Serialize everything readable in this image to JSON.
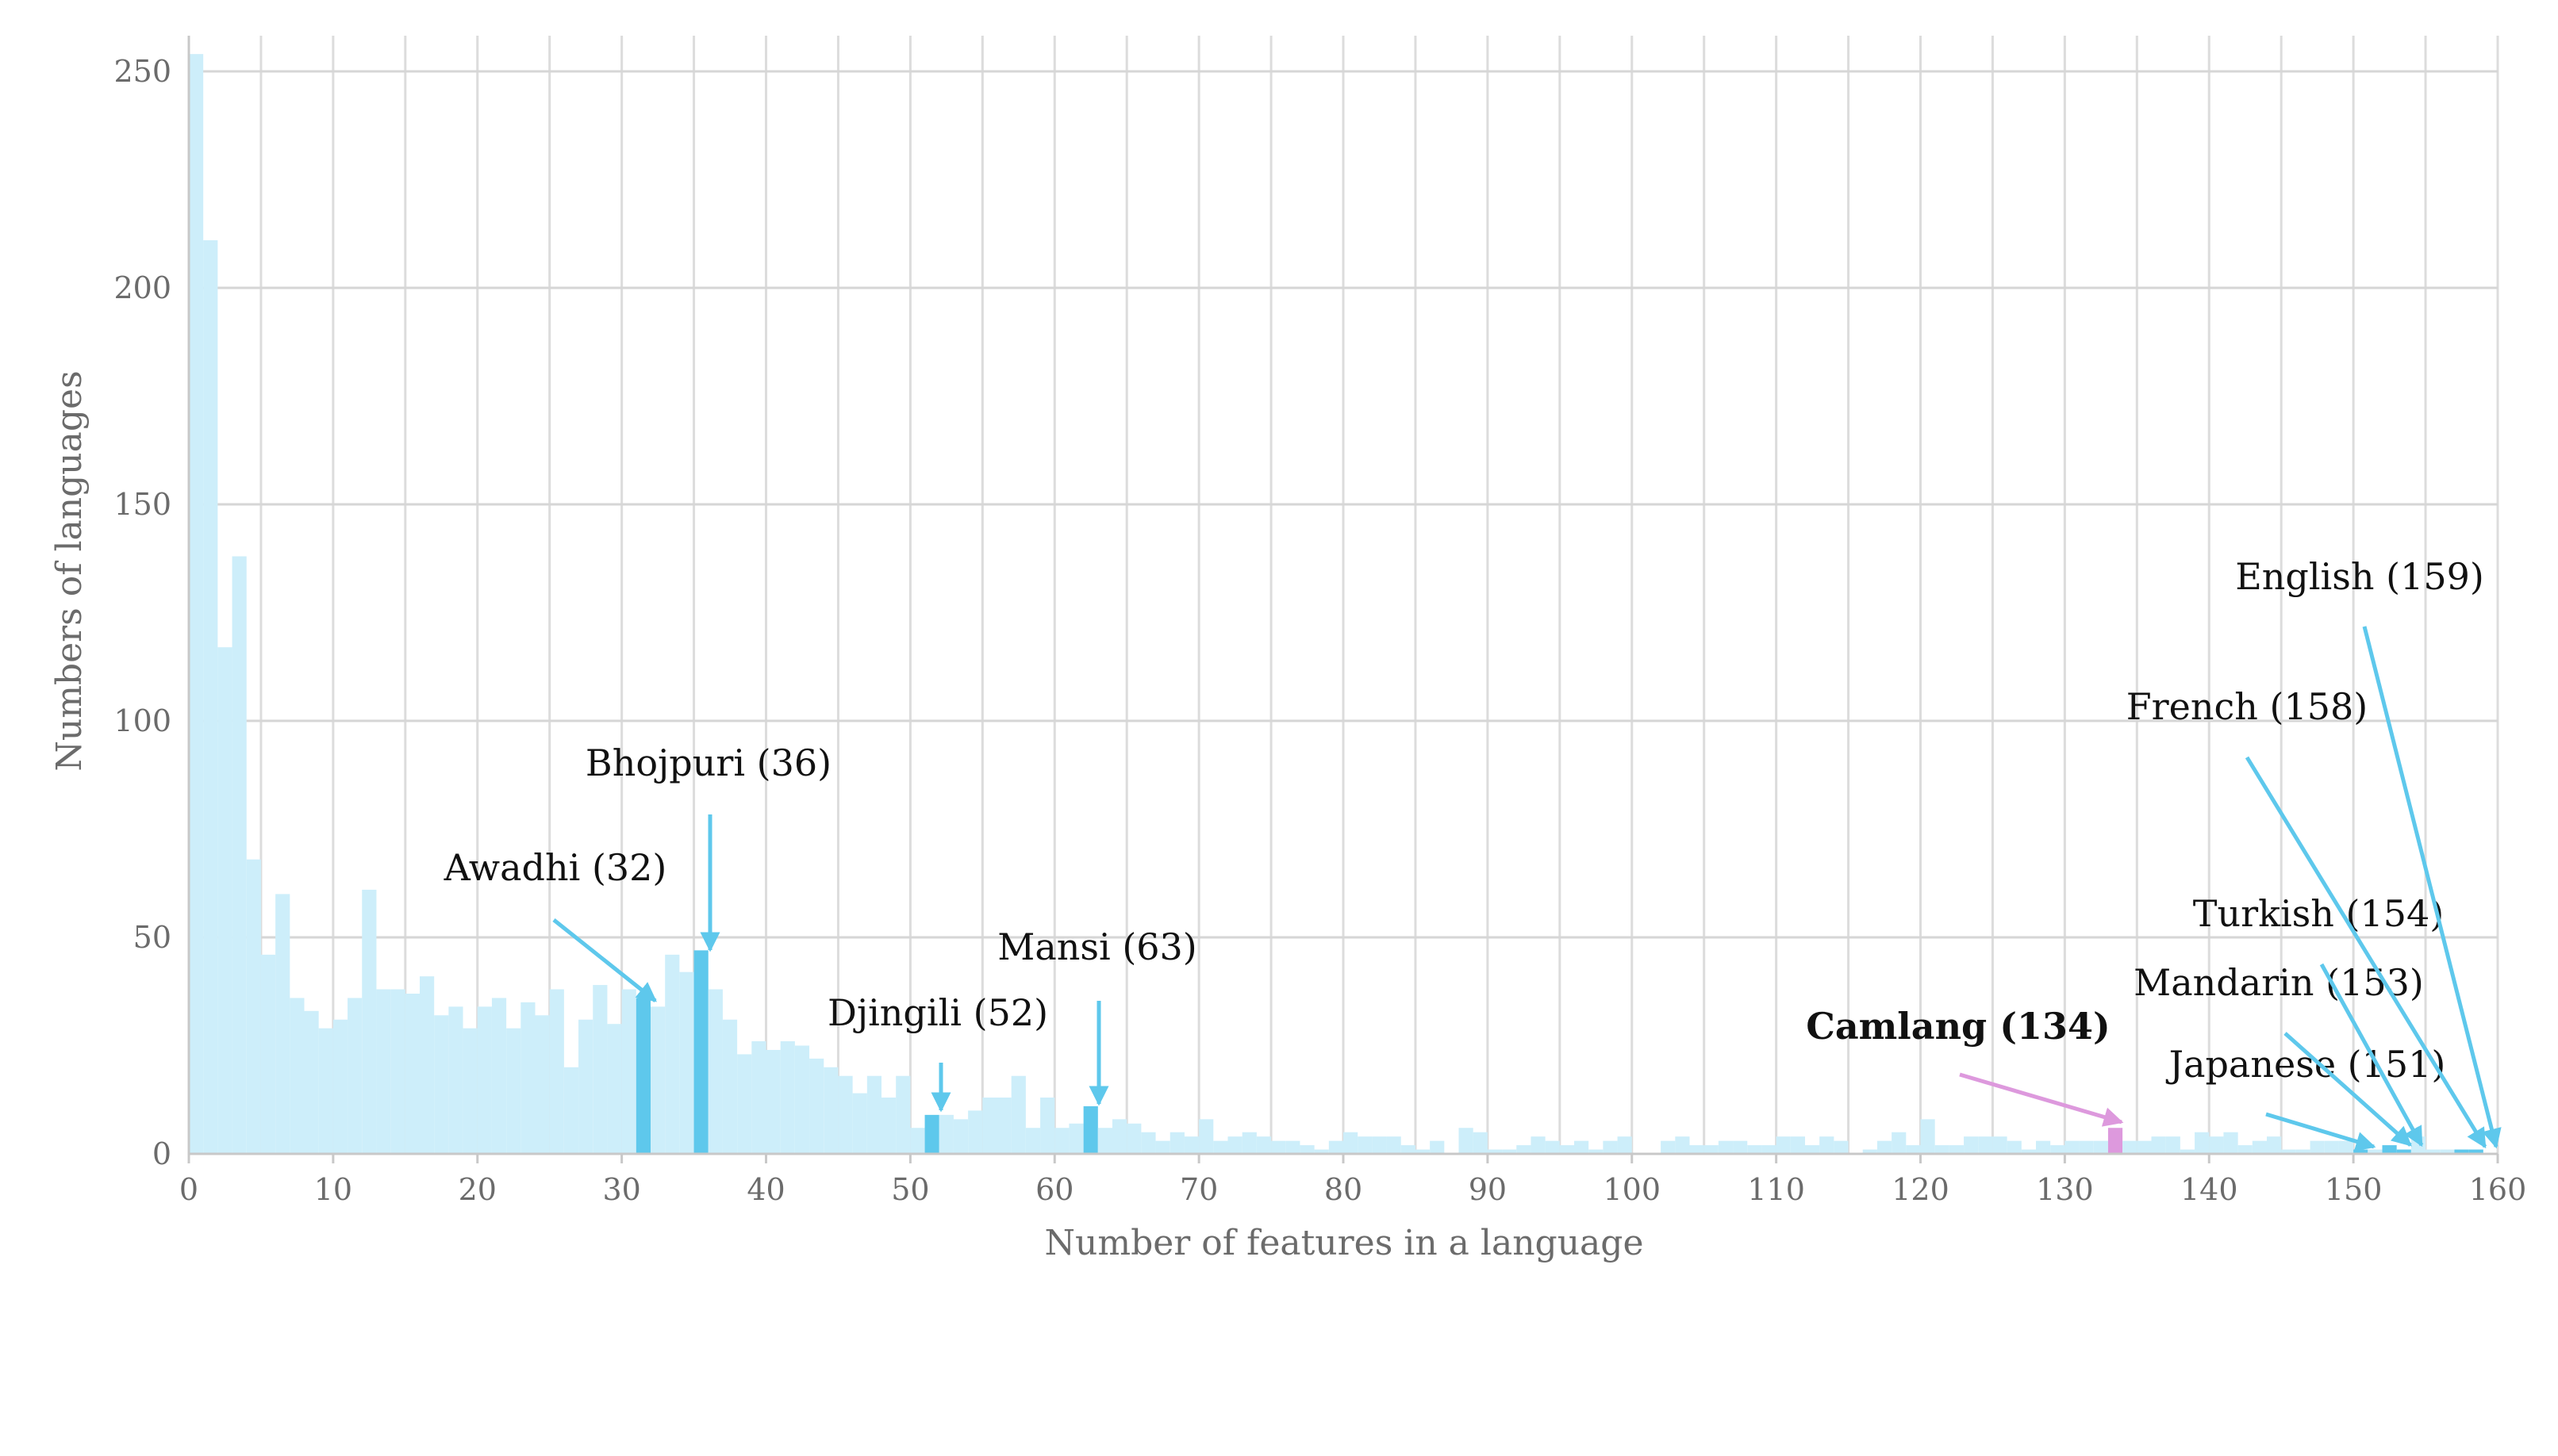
{
  "chart_data": {
    "type": "bar",
    "xlabel": "Number of features in a language",
    "ylabel": "Numbers of languages",
    "xlim": [
      0,
      160
    ],
    "ylim": [
      0,
      255
    ],
    "x_ticks": [
      "0",
      "10",
      "20",
      "30",
      "40",
      "50",
      "60",
      "70",
      "80",
      "90",
      "100",
      "110",
      "120",
      "130",
      "140",
      "150",
      "160"
    ],
    "y_ticks": [
      "0",
      "50",
      "100",
      "150",
      "200",
      "250"
    ],
    "grid": true,
    "bar_color": "#cdeefa",
    "highlight_color": "#5ec8ec",
    "camlang_color": "#dd99dd",
    "x": [
      1,
      2,
      3,
      4,
      5,
      6,
      7,
      8,
      9,
      10,
      11,
      12,
      13,
      14,
      15,
      16,
      17,
      18,
      19,
      20,
      21,
      22,
      23,
      24,
      25,
      26,
      27,
      28,
      29,
      30,
      31,
      32,
      33,
      34,
      35,
      36,
      37,
      38,
      39,
      40,
      41,
      42,
      43,
      44,
      45,
      46,
      47,
      48,
      49,
      50,
      51,
      52,
      53,
      54,
      55,
      56,
      57,
      58,
      59,
      60,
      61,
      62,
      63,
      64,
      65,
      66,
      67,
      68,
      69,
      70,
      71,
      72,
      73,
      74,
      75,
      76,
      77,
      78,
      79,
      80,
      81,
      82,
      83,
      84,
      85,
      86,
      87,
      88,
      89,
      90,
      91,
      92,
      93,
      94,
      95,
      96,
      97,
      98,
      99,
      100,
      101,
      102,
      103,
      104,
      105,
      106,
      107,
      108,
      109,
      110,
      111,
      112,
      113,
      114,
      115,
      116,
      117,
      118,
      119,
      120,
      121,
      122,
      123,
      124,
      125,
      126,
      127,
      128,
      129,
      130,
      131,
      132,
      133,
      134,
      135,
      136,
      137,
      138,
      139,
      140,
      141,
      142,
      143,
      144,
      145,
      146,
      147,
      148,
      149,
      150,
      151,
      152,
      153,
      154,
      155,
      156,
      157,
      158,
      159
    ],
    "values": [
      254,
      211,
      117,
      138,
      68,
      46,
      60,
      36,
      33,
      29,
      31,
      36,
      61,
      38,
      38,
      37,
      41,
      32,
      34,
      29,
      34,
      36,
      29,
      35,
      32,
      38,
      20,
      31,
      39,
      30,
      38,
      36,
      34,
      46,
      42,
      47,
      38,
      31,
      23,
      26,
      24,
      26,
      25,
      22,
      20,
      18,
      14,
      18,
      13,
      18,
      6,
      9,
      9,
      8,
      10,
      13,
      13,
      18,
      6,
      13,
      6,
      7,
      11,
      6,
      8,
      7,
      5,
      3,
      5,
      4,
      8,
      3,
      4,
      5,
      4,
      3,
      3,
      2,
      1,
      3,
      5,
      4,
      4,
      4,
      2,
      1,
      3,
      0,
      6,
      5,
      1,
      1,
      2,
      4,
      3,
      2,
      3,
      1,
      3,
      4,
      0,
      0,
      3,
      4,
      2,
      2,
      3,
      3,
      2,
      2,
      4,
      4,
      2,
      4,
      3,
      0,
      1,
      3,
      5,
      2,
      8,
      2,
      2,
      4,
      4,
      4,
      3,
      1,
      3,
      2,
      3,
      3,
      3,
      6,
      3,
      3,
      4,
      4,
      1,
      5,
      4,
      5,
      2,
      3,
      4,
      1,
      1,
      3,
      3,
      3,
      1,
      1,
      2,
      1,
      4,
      1,
      1,
      1,
      1
    ],
    "highlight_x": [
      32,
      36,
      52,
      63,
      151,
      153,
      154,
      158,
      159
    ],
    "camlang_x": 134,
    "annotations": [
      {
        "label": "Awadhi (32)",
        "x": 32,
        "bold": false
      },
      {
        "label": "Bhojpuri (36)",
        "x": 36,
        "bold": false
      },
      {
        "label": "Djingili (52)",
        "x": 52,
        "bold": false
      },
      {
        "label": "Mansi (63)",
        "x": 63,
        "bold": false
      },
      {
        "label": "Camlang (134)",
        "x": 134,
        "bold": true
      },
      {
        "label": "Japanese (151)",
        "x": 151,
        "bold": false
      },
      {
        "label": "Mandarin (153)",
        "x": 153,
        "bold": false
      },
      {
        "label": "Turkish (154)",
        "x": 154,
        "bold": false
      },
      {
        "label": "French (158)",
        "x": 158,
        "bold": false
      },
      {
        "label": "English (159)",
        "x": 159,
        "bold": false
      }
    ]
  }
}
